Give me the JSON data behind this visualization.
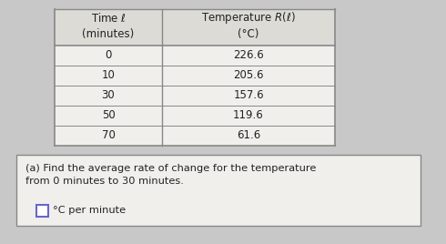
{
  "table_headers_col1": "Time ℓ\n(minutes)",
  "table_headers_col2_line1": "Temperature R(ℓ)",
  "table_headers_col2_line2": "(°C)",
  "table_rows": [
    [
      "0",
      "226.6"
    ],
    [
      "10",
      "205.6"
    ],
    [
      "30",
      "157.6"
    ],
    [
      "50",
      "119.6"
    ],
    [
      "70",
      "61.6"
    ]
  ],
  "question_text_line1": "(a) Find the average rate of change for the temperature",
  "question_text_line2": "from 0 minutes to 30 minutes.",
  "answer_unit": "°C per minute",
  "bg_color": "#c8c8c8",
  "page_bg": "#e8e8e4",
  "table_bg_header": "#dddbd6",
  "table_bg_row": "#f0efec",
  "table_border": "#888888",
  "question_box_bg": "#f0efec",
  "question_box_border": "#888888",
  "text_color": "#222222",
  "answer_box_color": "#6666cc"
}
